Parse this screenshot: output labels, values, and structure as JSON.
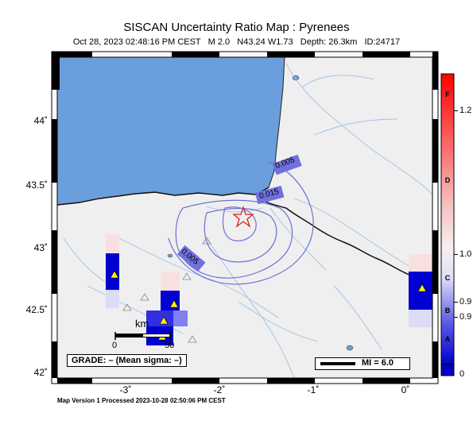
{
  "title": "SISCAN Uncertainty Ratio Map : Pyrenees",
  "subtitle": "Oct 28, 2023 02:48:16 PM CEST   M 2.0   N43.24 W1.73   Depth: 26.3km   ID:24717",
  "footer": "Map Version 1 Processed 2023-10-28 02:50:06 PM CEST",
  "axes": {
    "lat_ticks": [
      "44˚",
      "43.5˚",
      "43˚",
      "42.5˚",
      "42˚"
    ],
    "lon_ticks": [
      "-3˚",
      "-2˚",
      "-1˚",
      "0˚"
    ]
  },
  "contours": [
    "0.005",
    "0.015",
    "0.005"
  ],
  "scale_bar": {
    "unit": "km",
    "start": "0",
    "end": "50"
  },
  "grade_box": "GRADE: – (Mean sigma: –)",
  "mi_box": "MI = 6.0",
  "colorbar": {
    "values": [
      "1.2",
      "1.0",
      "0.9",
      "0.9",
      "0"
    ],
    "grades": [
      "F",
      "D",
      "C",
      "B",
      "A"
    ]
  },
  "colors": {
    "sea": "#6b9edc",
    "land": "#efefef",
    "station": "#ffee00",
    "epicenter": "#e02020"
  }
}
